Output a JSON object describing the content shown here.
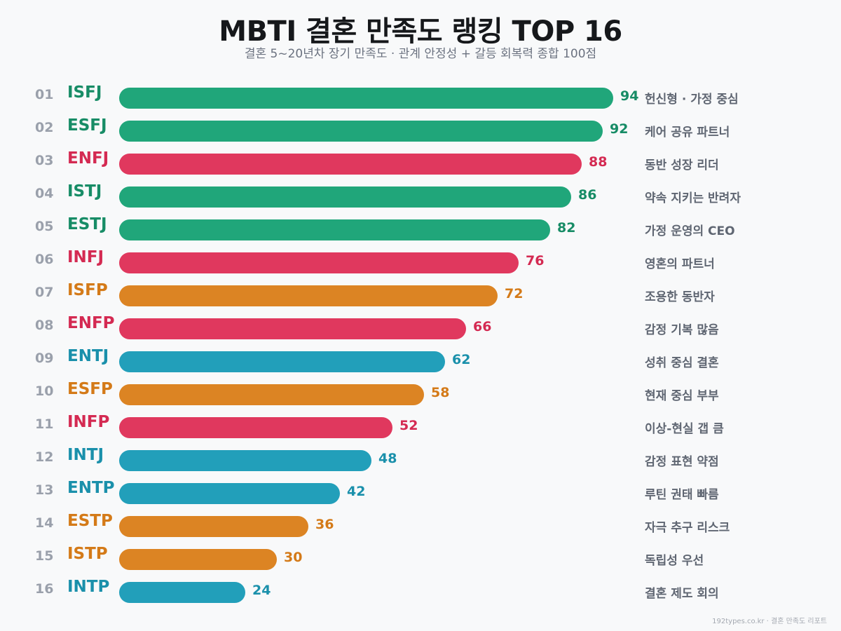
{
  "header": {
    "title": "MBTI 결혼 만족도 랭킹 TOP 16",
    "subtitle": "결혼 5~20년차 장기 만족도 · 관계 안정성 + 갈등 회복력 종합 100점"
  },
  "colors": {
    "SJ_green": {
      "bar": "#20a67a",
      "text": "#178c66"
    },
    "NF_red": {
      "bar": "#e0385e",
      "text": "#d42a52"
    },
    "SP_orange": {
      "bar": "#dc8423",
      "text": "#d47a18"
    },
    "NT_teal": {
      "bar": "#229fba",
      "text": "#1a90ab"
    }
  },
  "rows": [
    {
      "rank": "01",
      "type": "ISFJ",
      "value": 94,
      "desc": "헌신형 · 가정 중심",
      "group": "SJ_green"
    },
    {
      "rank": "02",
      "type": "ESFJ",
      "value": 92,
      "desc": "케어 공유 파트너",
      "group": "SJ_green"
    },
    {
      "rank": "03",
      "type": "ENFJ",
      "value": 88,
      "desc": "동반 성장 리더",
      "group": "NF_red"
    },
    {
      "rank": "04",
      "type": "ISTJ",
      "value": 86,
      "desc": "약속 지키는 반려자",
      "group": "SJ_green"
    },
    {
      "rank": "05",
      "type": "ESTJ",
      "value": 82,
      "desc": "가정 운영의 CEO",
      "group": "SJ_green"
    },
    {
      "rank": "06",
      "type": "INFJ",
      "value": 76,
      "desc": "영혼의 파트너",
      "group": "NF_red"
    },
    {
      "rank": "07",
      "type": "ISFP",
      "value": 72,
      "desc": "조용한 동반자",
      "group": "SP_orange"
    },
    {
      "rank": "08",
      "type": "ENFP",
      "value": 66,
      "desc": "감정 기복 많음",
      "group": "NF_red"
    },
    {
      "rank": "09",
      "type": "ENTJ",
      "value": 62,
      "desc": "성취 중심 결혼",
      "group": "NT_teal"
    },
    {
      "rank": "10",
      "type": "ESFP",
      "value": 58,
      "desc": "현재 중심 부부",
      "group": "SP_orange"
    },
    {
      "rank": "11",
      "type": "INFP",
      "value": 52,
      "desc": "이상-현실 갭 큼",
      "group": "NF_red"
    },
    {
      "rank": "12",
      "type": "INTJ",
      "value": 48,
      "desc": "감정 표현 약점",
      "group": "NT_teal"
    },
    {
      "rank": "13",
      "type": "ENTP",
      "value": 42,
      "desc": "루틴 권태 빠름",
      "group": "NT_teal"
    },
    {
      "rank": "14",
      "type": "ESTP",
      "value": 36,
      "desc": "자극 추구 리스크",
      "group": "SP_orange"
    },
    {
      "rank": "15",
      "type": "ISTP",
      "value": 30,
      "desc": "독립성 우선",
      "group": "SP_orange"
    },
    {
      "rank": "16",
      "type": "INTP",
      "value": 24,
      "desc": "결혼 제도 회의",
      "group": "NT_teal"
    }
  ],
  "footer": {
    "source": "192types.co.kr · 결혼 만족도 리포트"
  },
  "chart_data": {
    "type": "bar",
    "orientation": "horizontal",
    "title": "MBTI 결혼 만족도 랭킹 TOP 16",
    "subtitle": "결혼 5~20년차 장기 만족도 · 관계 안정성 + 갈등 회복력 종합 100점",
    "categories": [
      "ISFJ",
      "ESFJ",
      "ENFJ",
      "ISTJ",
      "ESTJ",
      "INFJ",
      "ISFP",
      "ENFP",
      "ENTJ",
      "ESFP",
      "INFP",
      "INTJ",
      "ENTP",
      "ESTP",
      "ISTP",
      "INTP"
    ],
    "values": [
      94,
      92,
      88,
      86,
      82,
      76,
      72,
      66,
      62,
      58,
      52,
      48,
      42,
      36,
      30,
      24
    ],
    "annotations": [
      "헌신형 · 가정 중심",
      "케어 공유 파트너",
      "동반 성장 리더",
      "약속 지키는 반려자",
      "가정 운영의 CEO",
      "영혼의 파트너",
      "조용한 동반자",
      "감정 기복 많음",
      "성취 중심 결혼",
      "현재 중심 부부",
      "이상-현실 갭 큼",
      "감정 표현 약점",
      "루틴 권태 빠름",
      "자극 추구 리스크",
      "독립성 우선",
      "결혼 제도 회의"
    ],
    "xlabel": "",
    "ylabel": "",
    "xlim": [
      0,
      100
    ],
    "grid": false,
    "legend": "none",
    "data_labels": true
  }
}
